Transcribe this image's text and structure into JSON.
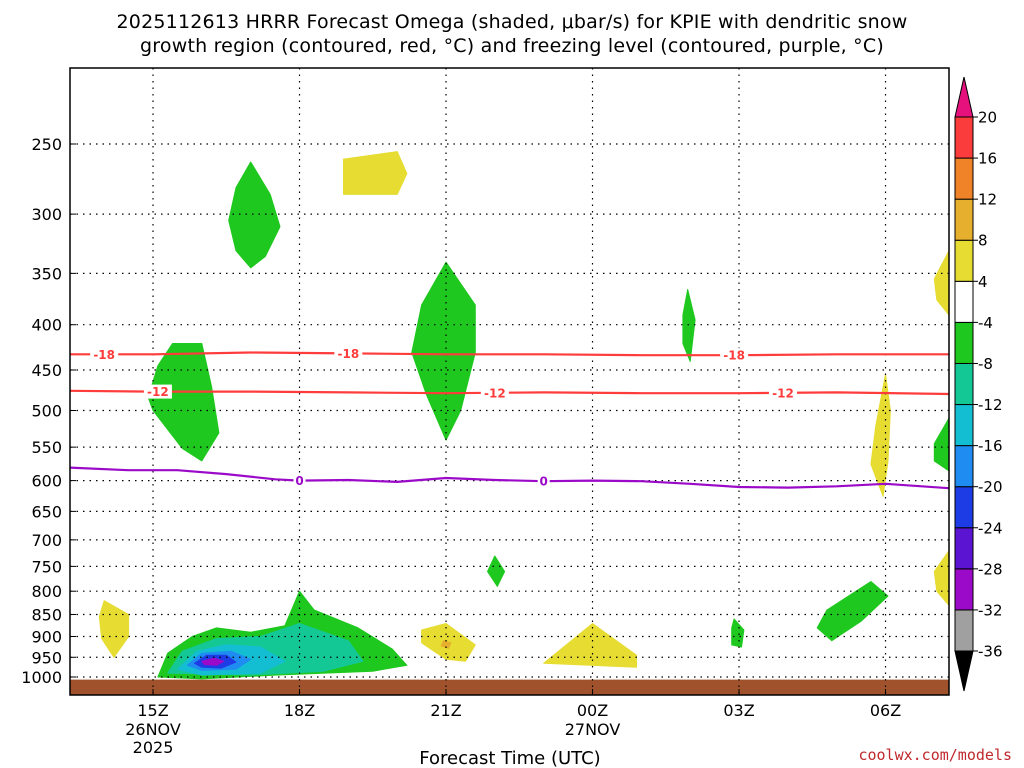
{
  "chart_data": {
    "type": "contour",
    "title_line1": "2025112613 HRRR Forecast Omega (shaded, μbar/s) for KPIE with dendritic snow",
    "title_line2": "growth region (contoured, red, °C) and freezing level (contoured, purple, °C)",
    "xlabel": "Forecast Time (UTC)",
    "ylabel": "",
    "credit": "coolwx.com/models",
    "x_range": [
      13.3,
      31.3
    ],
    "y_range": [
      1030,
      200
    ],
    "x_ticks": [
      {
        "x": 15,
        "label": "15Z"
      },
      {
        "x": 18,
        "label": "18Z"
      },
      {
        "x": 21,
        "label": "21Z"
      },
      {
        "x": 24,
        "label": "00Z"
      },
      {
        "x": 27,
        "label": "03Z"
      },
      {
        "x": 30,
        "label": "06Z"
      }
    ],
    "date_labels": [
      {
        "x": 15,
        "lines": [
          "26NOV",
          "2025"
        ]
      },
      {
        "x": 24,
        "lines": [
          "27NOV"
        ]
      }
    ],
    "y_ticks": [
      250,
      300,
      350,
      400,
      450,
      500,
      550,
      600,
      650,
      700,
      750,
      800,
      850,
      900,
      950,
      1000
    ],
    "ground_pressure": 1020,
    "colorbar": {
      "levels": [
        -36,
        -32,
        -28,
        -24,
        -20,
        -16,
        -12,
        -8,
        -4,
        4,
        8,
        12,
        16,
        20
      ],
      "colors": [
        "#000000",
        "#a0a0a0",
        "#9b0ac8",
        "#5a14d2",
        "#1e3ce6",
        "#1e8cf0",
        "#14bed2",
        "#14c896",
        "#1ec81e",
        "#ffffff",
        "#e6dc32",
        "#e6af2d",
        "#f08228",
        "#fa3c3c",
        "#e6117d"
      ],
      "units": "μbar/s"
    },
    "contours": [
      {
        "name": "dgz-top",
        "value": -18,
        "label": "-18",
        "color": "#ff3c3c",
        "x": [
          13.3,
          15,
          17,
          19,
          21,
          23,
          25,
          27,
          29,
          31.3
        ],
        "p": [
          432,
          432,
          430,
          431,
          432,
          432,
          433,
          433,
          432,
          432
        ],
        "label_x": [
          14.0,
          19.0,
          26.9
        ]
      },
      {
        "name": "dgz-bottom",
        "value": -12,
        "label": "-12",
        "color": "#ff3c3c",
        "x": [
          13.3,
          15,
          17,
          19,
          21,
          23,
          25,
          27,
          29,
          31.3
        ],
        "p": [
          475,
          476,
          476,
          477,
          478,
          477,
          478,
          478,
          477,
          479
        ],
        "label_x": [
          15.1,
          22.0,
          27.9
        ]
      },
      {
        "name": "freezing-level",
        "value": 0,
        "label": "0",
        "color": "#9b0ac8",
        "x": [
          13.3,
          14.5,
          15.5,
          16.5,
          17.5,
          18,
          19,
          20,
          21,
          22,
          23,
          24,
          25,
          26,
          27,
          28,
          29,
          30,
          31.3
        ],
        "p": [
          580,
          584,
          584,
          590,
          598,
          600,
          599,
          602,
          596,
          599,
          601,
          600,
          601,
          605,
          610,
          611,
          609,
          605,
          612
        ],
        "label_x": [
          18.0,
          23.0
        ]
      }
    ],
    "omega_regions": [
      {
        "name": "green-upper-left",
        "value_range": [
          -8,
          -4
        ],
        "color": "#1ec81e",
        "points": [
          [
            17.0,
            262
          ],
          [
            17.4,
            285
          ],
          [
            17.6,
            310
          ],
          [
            17.3,
            335
          ],
          [
            17.0,
            345
          ],
          [
            16.7,
            330
          ],
          [
            16.55,
            305
          ],
          [
            16.7,
            280
          ]
        ]
      },
      {
        "name": "yellow-top",
        "value_range": [
          4,
          8
        ],
        "color": "#e6dc32",
        "points": [
          [
            18.9,
            260
          ],
          [
            20.0,
            255
          ],
          [
            20.2,
            270
          ],
          [
            20.0,
            285
          ],
          [
            18.9,
            285
          ]
        ]
      },
      {
        "name": "green-left-mid",
        "value_range": [
          -8,
          -4
        ],
        "color": "#1ec81e",
        "points": [
          [
            15.4,
            420
          ],
          [
            16.0,
            420
          ],
          [
            16.2,
            470
          ],
          [
            16.35,
            530
          ],
          [
            16.0,
            570
          ],
          [
            15.6,
            552
          ],
          [
            15.0,
            500
          ],
          [
            14.9,
            483
          ],
          [
            15.1,
            445
          ]
        ]
      },
      {
        "name": "green-center-mid",
        "value_range": [
          -8,
          -4
        ],
        "color": "#1ec81e",
        "points": [
          [
            21.0,
            340
          ],
          [
            21.6,
            380
          ],
          [
            21.6,
            430
          ],
          [
            21.3,
            500
          ],
          [
            21.0,
            540
          ],
          [
            20.6,
            480
          ],
          [
            20.3,
            430
          ],
          [
            20.5,
            380
          ]
        ]
      },
      {
        "name": "green-thin-02z",
        "value_range": [
          -8,
          -4
        ],
        "color": "#1ec81e",
        "points": [
          [
            25.95,
            365
          ],
          [
            26.1,
            395
          ],
          [
            26.0,
            440
          ],
          [
            25.85,
            420
          ],
          [
            25.85,
            390
          ]
        ]
      },
      {
        "name": "yellow-right-upper",
        "value_range": [
          4,
          8
        ],
        "color": "#e6dc32",
        "points": [
          [
            31.3,
            330
          ],
          [
            31.0,
            355
          ],
          [
            31.05,
            375
          ],
          [
            31.3,
            390
          ]
        ]
      },
      {
        "name": "yellow-right-mid",
        "value_range": [
          4,
          8
        ],
        "color": "#e6dc32",
        "points": [
          [
            30.0,
            455
          ],
          [
            30.1,
            500
          ],
          [
            30.05,
            570
          ],
          [
            29.95,
            625
          ],
          [
            29.7,
            575
          ],
          [
            29.8,
            520
          ]
        ]
      },
      {
        "name": "green-right-mid",
        "value_range": [
          -8,
          -4
        ],
        "color": "#1ec81e",
        "points": [
          [
            31.3,
            510
          ],
          [
            31.0,
            545
          ],
          [
            31.0,
            570
          ],
          [
            31.3,
            585
          ]
        ]
      },
      {
        "name": "green-750",
        "value_range": [
          -8,
          -4
        ],
        "color": "#1ec81e",
        "points": [
          [
            22.0,
            730
          ],
          [
            22.2,
            760
          ],
          [
            22.05,
            790
          ],
          [
            21.85,
            760
          ]
        ]
      },
      {
        "name": "yellow-right-low",
        "value_range": [
          4,
          8
        ],
        "color": "#e6dc32",
        "points": [
          [
            31.3,
            720
          ],
          [
            31.0,
            760
          ],
          [
            31.05,
            800
          ],
          [
            31.3,
            830
          ]
        ]
      },
      {
        "name": "green-right-low",
        "value_range": [
          -8,
          -4
        ],
        "color": "#1ec81e",
        "points": [
          [
            29.7,
            780
          ],
          [
            30.05,
            810
          ],
          [
            29.5,
            865
          ],
          [
            28.9,
            910
          ],
          [
            28.6,
            880
          ],
          [
            28.8,
            840
          ]
        ]
      },
      {
        "name": "green-03z-low",
        "value_range": [
          -8,
          -4
        ],
        "color": "#1ec81e",
        "points": [
          [
            26.9,
            860
          ],
          [
            27.1,
            885
          ],
          [
            27.05,
            925
          ],
          [
            26.85,
            920
          ],
          [
            26.85,
            880
          ]
        ]
      },
      {
        "name": "yellow-left-low",
        "value_range": [
          4,
          8
        ],
        "color": "#e6dc32",
        "points": [
          [
            14.0,
            820
          ],
          [
            14.5,
            850
          ],
          [
            14.5,
            900
          ],
          [
            14.2,
            950
          ],
          [
            13.95,
            905
          ],
          [
            13.9,
            855
          ]
        ]
      },
      {
        "name": "yellow-21z-low",
        "value_range": [
          4,
          8
        ],
        "color": "#e6dc32",
        "points": [
          [
            20.5,
            885
          ],
          [
            21.0,
            870
          ],
          [
            21.6,
            920
          ],
          [
            21.4,
            960
          ],
          [
            21.0,
            955
          ],
          [
            20.5,
            915
          ]
        ]
      },
      {
        "name": "yellow-00z-low",
        "value_range": [
          4,
          8
        ],
        "color": "#e6dc32",
        "points": [
          [
            24.0,
            870
          ],
          [
            24.9,
            945
          ],
          [
            24.9,
            975
          ],
          [
            23.0,
            965
          ]
        ]
      },
      {
        "name": "green-low-big",
        "value_range": [
          -8,
          -4
        ],
        "color": "#1ec81e",
        "points": [
          [
            15.1,
            1000
          ],
          [
            15.3,
            940
          ],
          [
            15.8,
            900
          ],
          [
            16.3,
            880
          ],
          [
            17.0,
            890
          ],
          [
            17.7,
            875
          ],
          [
            18.0,
            800
          ],
          [
            18.3,
            840
          ],
          [
            19.2,
            880
          ],
          [
            19.9,
            930
          ],
          [
            20.2,
            970
          ],
          [
            19.5,
            985
          ],
          [
            17.5,
            995
          ],
          [
            16.0,
            1005
          ]
        ]
      },
      {
        "name": "teal-low",
        "value_range": [
          -12,
          -8
        ],
        "color": "#14c896",
        "points": [
          [
            15.3,
            990
          ],
          [
            15.6,
            935
          ],
          [
            16.3,
            905
          ],
          [
            17.2,
            900
          ],
          [
            18.0,
            870
          ],
          [
            19.0,
            910
          ],
          [
            19.3,
            960
          ],
          [
            18.5,
            985
          ],
          [
            17.0,
            995
          ]
        ]
      },
      {
        "name": "cyan-low",
        "value_range": [
          -16,
          -12
        ],
        "color": "#14bed2",
        "points": [
          [
            15.5,
            980
          ],
          [
            15.9,
            935
          ],
          [
            16.5,
            920
          ],
          [
            17.2,
            925
          ],
          [
            17.7,
            960
          ],
          [
            17.2,
            990
          ],
          [
            16.0,
            995
          ]
        ]
      },
      {
        "name": "blue-low",
        "value_range": [
          -20,
          -16
        ],
        "color": "#1e8cf0",
        "points": [
          [
            15.7,
            970
          ],
          [
            16.0,
            940
          ],
          [
            16.6,
            935
          ],
          [
            17.0,
            955
          ],
          [
            16.7,
            980
          ],
          [
            16.0,
            983
          ]
        ]
      },
      {
        "name": "dark-blue-low",
        "value_range": [
          -24,
          -20
        ],
        "color": "#1e3ce6",
        "points": [
          [
            15.85,
            965
          ],
          [
            16.1,
            945
          ],
          [
            16.5,
            945
          ],
          [
            16.7,
            962
          ],
          [
            16.4,
            977
          ],
          [
            16.0,
            975
          ]
        ]
      },
      {
        "name": "purple-low",
        "value_range": [
          -28,
          -24
        ],
        "color": "#9b0ac8",
        "points": [
          [
            16.0,
            960
          ],
          [
            16.25,
            952
          ],
          [
            16.45,
            960
          ],
          [
            16.3,
            970
          ],
          [
            16.05,
            968
          ]
        ]
      },
      {
        "name": "orange-dot-21z",
        "value_range": [
          8,
          12
        ],
        "color": "#e6af2d",
        "points": [
          [
            20.95,
            910
          ],
          [
            21.1,
            915
          ],
          [
            21.05,
            928
          ],
          [
            20.9,
            922
          ]
        ]
      }
    ]
  }
}
